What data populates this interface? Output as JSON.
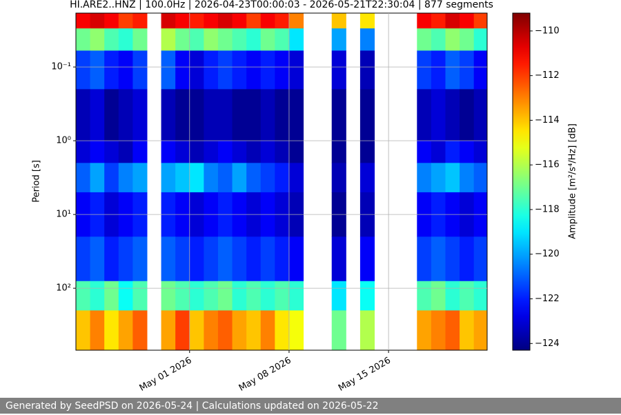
{
  "chart_data": {
    "type": "spectrogram",
    "title": "HI.ARE2..HNZ | 100.0Hz | 2026-04-23T00:00:03 - 2026-05-21T22:30:04 | 877 segments",
    "ylabel": "Period [s]",
    "colorbar_label": "Amplitude [m²/s⁴/Hz] [dB]",
    "colormap": "jet",
    "grid": true,
    "y_log": true,
    "y_inverted": true,
    "xlim": [
      "2026-04-23T00:00:03",
      "2026-05-21T22:30:04"
    ],
    "xticks": [
      {
        "value": "2026-05-01",
        "label": "May 01 2026"
      },
      {
        "value": "2026-05-08",
        "label": "May 08 2026"
      },
      {
        "value": "2026-05-15",
        "label": "May 15 2026"
      }
    ],
    "ylim": [
      0.0186,
      692
    ],
    "yticks": [
      {
        "value": 0.1,
        "label": "10⁻¹"
      },
      {
        "value": 1,
        "label": "10⁰"
      },
      {
        "value": 10,
        "label": "10¹"
      },
      {
        "value": 100,
        "label": "10²"
      }
    ],
    "clim": [
      -124.3,
      -109.2
    ],
    "cticks": [
      {
        "value": -110,
        "label": "−110"
      },
      {
        "value": -112,
        "label": "−112"
      },
      {
        "value": -114,
        "label": "−114"
      },
      {
        "value": -116,
        "label": "−116"
      },
      {
        "value": -118,
        "label": "−118"
      },
      {
        "value": -120,
        "label": "−120"
      },
      {
        "value": -122,
        "label": "−122"
      },
      {
        "value": -124,
        "label": "−124"
      }
    ],
    "x": [
      "2026-04-23",
      "2026-04-24",
      "2026-04-25",
      "2026-04-26",
      "2026-04-27",
      "2026-04-28",
      "2026-04-29",
      "2026-04-30",
      "2026-05-01",
      "2026-05-02",
      "2026-05-03",
      "2026-05-04",
      "2026-05-05",
      "2026-05-06",
      "2026-05-07",
      "2026-05-08",
      "2026-05-09",
      "2026-05-10",
      "2026-05-11",
      "2026-05-12",
      "2026-05-13",
      "2026-05-14",
      "2026-05-15",
      "2026-05-16",
      "2026-05-17",
      "2026-05-18",
      "2026-05-19",
      "2026-05-20",
      "2026-05-21",
      "2026-05-22"
    ],
    "period_edges": [
      0.0186,
      0.03,
      0.06,
      0.2,
      1,
      2,
      5,
      20,
      80,
      200,
      692
    ],
    "z": [
      [
        -111,
        -110.5,
        -111,
        -112,
        -111.5,
        null,
        -110.5,
        -111,
        -111.5,
        -111,
        -110.5,
        -111,
        -112,
        -111,
        -111.5,
        -113,
        null,
        null,
        -114,
        null,
        -114.5,
        null,
        null,
        null,
        -111,
        -111.5,
        -110.5,
        -111,
        -112
      ],
      [
        -117,
        -116.5,
        -117.5,
        -118,
        -117,
        null,
        -116,
        -117,
        -117.5,
        -116.5,
        -117,
        -117.5,
        -118,
        -117,
        -117.5,
        -119,
        null,
        null,
        -120,
        null,
        -120.5,
        null,
        null,
        null,
        -117,
        -117.5,
        -116.5,
        -117,
        -118
      ],
      [
        -121.5,
        -121,
        -122,
        -122.5,
        -121.5,
        null,
        -121,
        -122.5,
        -123,
        -122,
        -121.5,
        -122,
        -122.5,
        -122,
        -122.5,
        -123,
        null,
        null,
        -123,
        null,
        -123.5,
        null,
        null,
        null,
        -121.5,
        -122,
        -121,
        -121.5,
        -122.5
      ],
      [
        -123.5,
        -123,
        -124,
        -123.5,
        -123,
        null,
        -123.5,
        -124,
        -124,
        -123.5,
        -123.5,
        -124,
        -124,
        -123.5,
        -124,
        -124,
        null,
        null,
        -124,
        null,
        -124,
        null,
        null,
        null,
        -123.5,
        -123,
        -123.5,
        -124,
        -123.5
      ],
      [
        -123,
        -122.5,
        -123,
        -123.5,
        -122.5,
        null,
        -122.5,
        -123,
        -123.5,
        -123,
        -122.5,
        -123,
        -123.5,
        -123,
        -123.5,
        -124,
        null,
        null,
        -124,
        null,
        -124,
        null,
        null,
        null,
        -122.5,
        -123,
        -122,
        -122.5,
        -123
      ],
      [
        -121,
        -120,
        -121.5,
        -120.5,
        -120,
        null,
        -120,
        -119.5,
        -119,
        -120.5,
        -121,
        -120,
        -121,
        -121.5,
        -122,
        -123,
        null,
        null,
        -123.5,
        null,
        -123,
        null,
        null,
        null,
        -120.5,
        -120,
        -119.5,
        -120.5,
        -121
      ],
      [
        -122.5,
        -122,
        -123,
        -122.5,
        -122,
        null,
        -122,
        -122.5,
        -123,
        -122.5,
        -122,
        -122.5,
        -123,
        -122.5,
        -123,
        -123.5,
        null,
        null,
        -124,
        null,
        -123.5,
        null,
        null,
        null,
        -122.5,
        -122,
        -122.5,
        -123,
        -122.5
      ],
      [
        -121.5,
        -121,
        -122,
        -121.5,
        -121,
        null,
        -121,
        -121.5,
        -122,
        -121.5,
        -121,
        -121.5,
        -122,
        -121.5,
        -122,
        -122.5,
        null,
        null,
        -123,
        null,
        -122.5,
        null,
        null,
        null,
        -121.5,
        -121,
        -121.5,
        -122,
        -121.5
      ],
      [
        -117.5,
        -118,
        -117,
        -118.5,
        -117.5,
        null,
        -117,
        -117.5,
        -118,
        -117.5,
        -117,
        -118,
        -117.5,
        -118,
        -117.5,
        -118,
        null,
        null,
        -119,
        null,
        -118.5,
        null,
        null,
        null,
        -117.5,
        -117,
        -118,
        -117.5,
        -118
      ],
      [
        -114,
        -113,
        -114.5,
        -113.5,
        -112.5,
        null,
        -113.5,
        -112,
        -114,
        -113,
        -112.5,
        -113.5,
        -114,
        -113,
        -114.5,
        -115,
        null,
        null,
        -117,
        null,
        -116,
        null,
        null,
        null,
        -113.5,
        -113,
        -112.5,
        -114,
        -113.5
      ]
    ]
  },
  "footer": "Generated by SeedPSD on 2026-05-24 | Calculations updated on 2026-05-22"
}
